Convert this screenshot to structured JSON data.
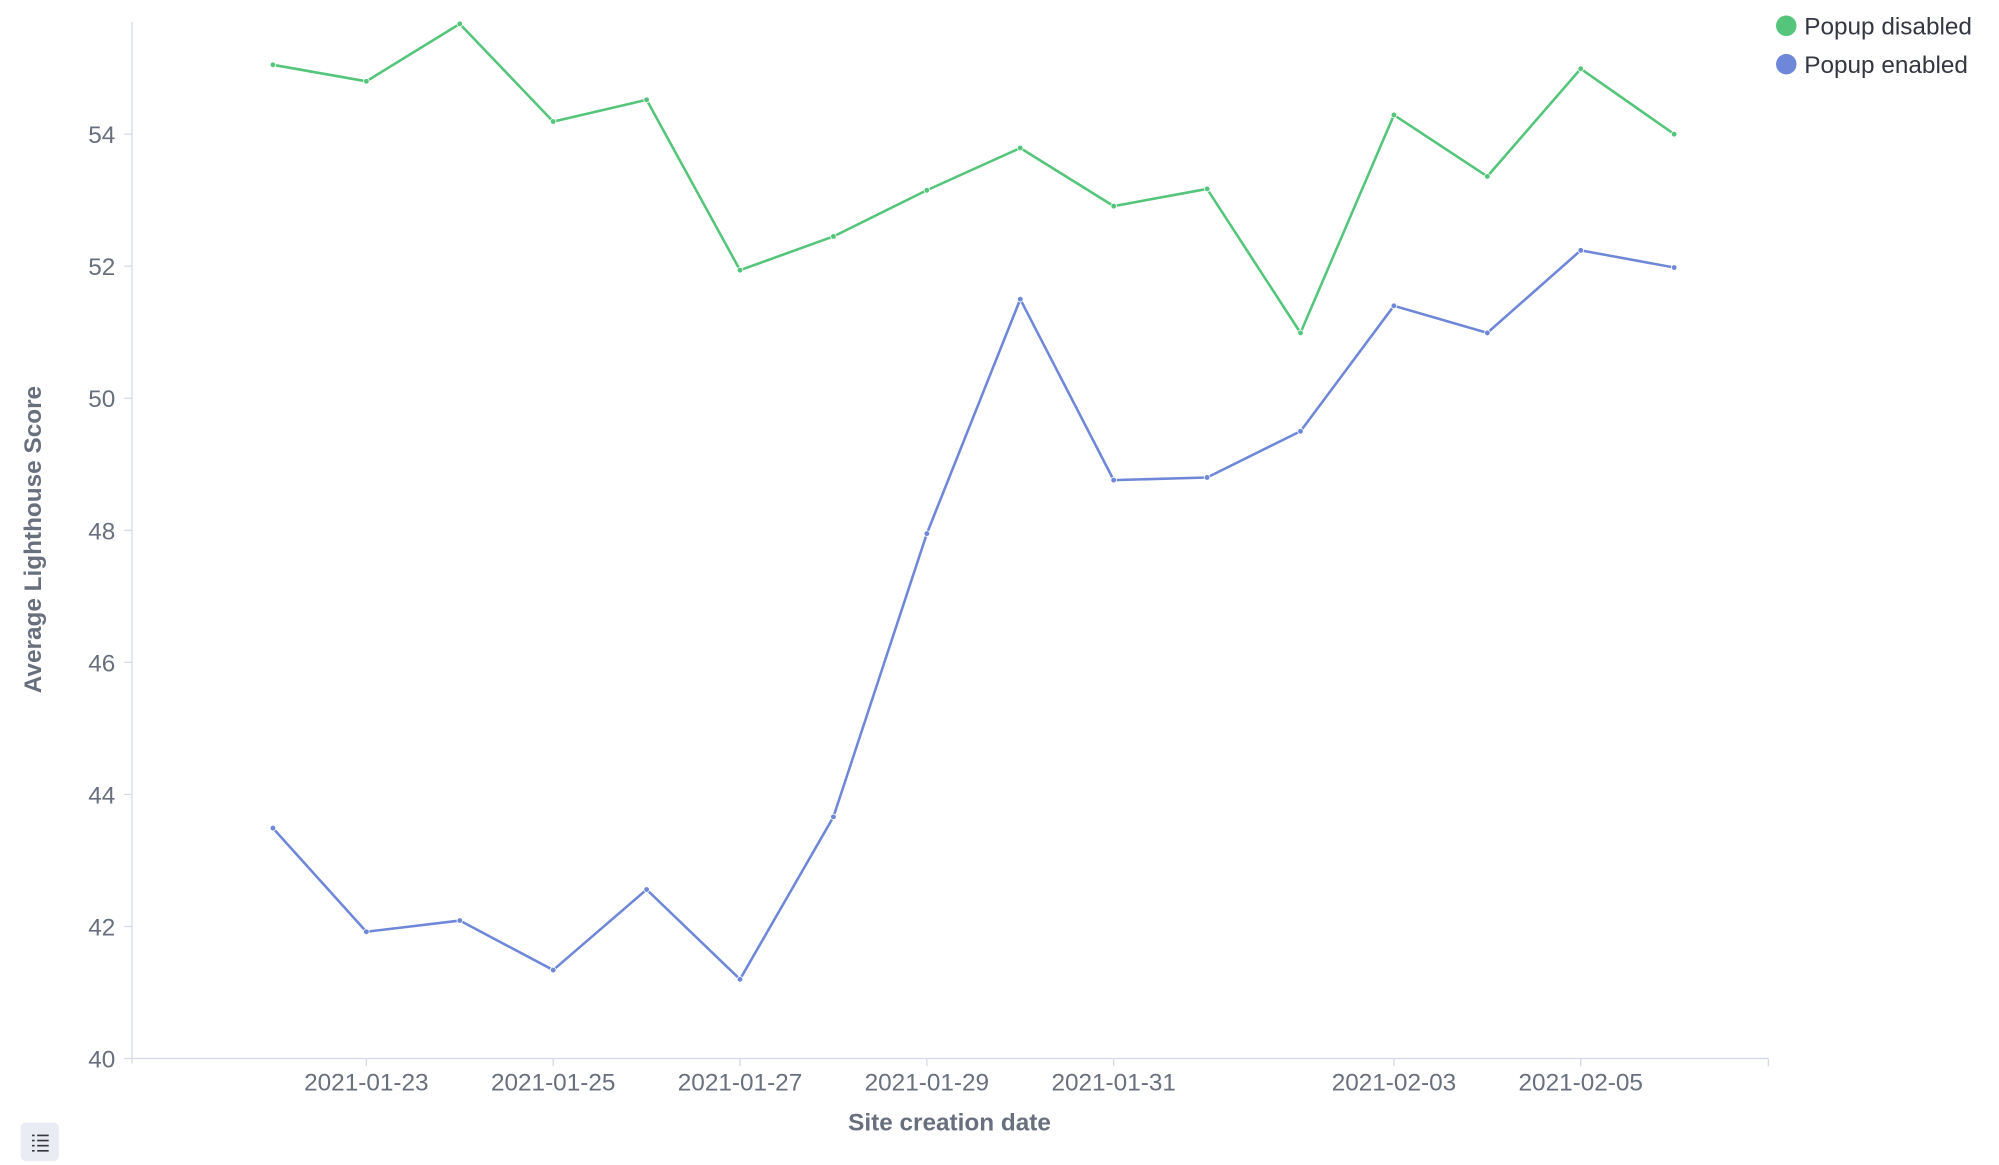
{
  "chart_data": {
    "type": "line",
    "title": "",
    "xlabel": "Site creation date",
    "ylabel": "Average Lighthouse Score",
    "x": [
      "2021-01-22",
      "2021-01-23",
      "2021-01-24",
      "2021-01-25",
      "2021-01-26",
      "2021-01-27",
      "2021-01-28",
      "2021-01-29",
      "2021-01-30",
      "2021-01-31",
      "2021-02-01",
      "2021-02-02",
      "2021-02-03",
      "2021-02-04",
      "2021-02-05",
      "2021-02-06"
    ],
    "x_ticks": [
      "2021-01-23",
      "2021-01-25",
      "2021-01-27",
      "2021-01-29",
      "2021-01-31",
      "2021-02-03",
      "2021-02-05"
    ],
    "y_ticks": [
      40,
      42,
      44,
      46,
      48,
      50,
      52,
      54
    ],
    "ylim": [
      40,
      55.7
    ],
    "grid": false,
    "legend_position": "top-right",
    "series": [
      {
        "name": "Popup disabled",
        "color": "#54c57a",
        "values": [
          55.05,
          54.8,
          55.67,
          54.19,
          54.52,
          51.94,
          52.45,
          53.15,
          53.79,
          52.91,
          53.17,
          50.99,
          54.29,
          53.36,
          54.99,
          54.0
        ]
      },
      {
        "name": "Popup enabled",
        "color": "#6f87d8",
        "values": [
          43.49,
          41.92,
          42.09,
          41.34,
          42.56,
          41.2,
          43.66,
          47.95,
          51.5,
          48.76,
          48.8,
          49.5,
          51.4,
          50.99,
          52.24,
          51.98
        ]
      }
    ]
  },
  "toolbar": {
    "legend_toggle_icon": "list-icon"
  }
}
